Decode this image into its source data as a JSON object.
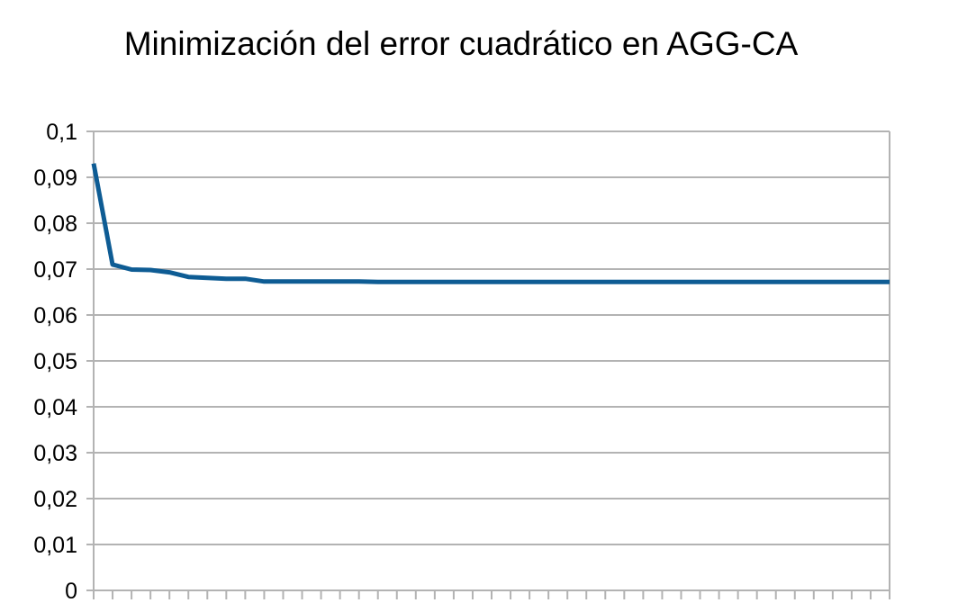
{
  "chart_data": {
    "type": "line",
    "title": "Minimización del error cuadrático en AGG-CA",
    "xlabel": "",
    "ylabel": "",
    "ylim": [
      0,
      0.1
    ],
    "yticks": [
      {
        "value": 0,
        "label": "0"
      },
      {
        "value": 0.01,
        "label": "0,01"
      },
      {
        "value": 0.02,
        "label": "0,02"
      },
      {
        "value": 0.03,
        "label": "0,03"
      },
      {
        "value": 0.04,
        "label": "0,04"
      },
      {
        "value": 0.05,
        "label": "0,05"
      },
      {
        "value": 0.06,
        "label": "0,06"
      },
      {
        "value": 0.07,
        "label": "0,07"
      },
      {
        "value": 0.08,
        "label": "0,08"
      },
      {
        "value": 0.09,
        "label": "0,09"
      },
      {
        "value": 0.1,
        "label": "0,1"
      }
    ],
    "grid": true,
    "x": [
      1,
      2,
      3,
      4,
      5,
      6,
      7,
      8,
      9,
      10,
      11,
      12,
      13,
      14,
      15,
      16,
      17,
      18,
      19,
      20,
      21,
      22,
      23,
      24,
      25,
      26,
      27,
      28,
      29,
      30,
      31,
      32,
      33,
      34,
      35,
      36,
      37,
      38,
      39,
      40,
      41,
      42,
      43
    ],
    "series": [
      {
        "color": "#0e5c94",
        "values": [
          0.093,
          0.071,
          0.0699,
          0.0698,
          0.0693,
          0.0683,
          0.0681,
          0.0679,
          0.0679,
          0.0673,
          0.0673,
          0.0673,
          0.0673,
          0.0673,
          0.0673,
          0.0672,
          0.0672,
          0.0672,
          0.0672,
          0.0672,
          0.0672,
          0.0672,
          0.0672,
          0.0672,
          0.0672,
          0.0672,
          0.0672,
          0.0672,
          0.0672,
          0.0672,
          0.0672,
          0.0672,
          0.0672,
          0.0672,
          0.0672,
          0.0672,
          0.0672,
          0.0672,
          0.0672,
          0.0672,
          0.0672,
          0.0672,
          0.0672
        ]
      }
    ],
    "colors": {
      "grid": "#b3b3b3",
      "axis": "#b3b3b3"
    }
  }
}
